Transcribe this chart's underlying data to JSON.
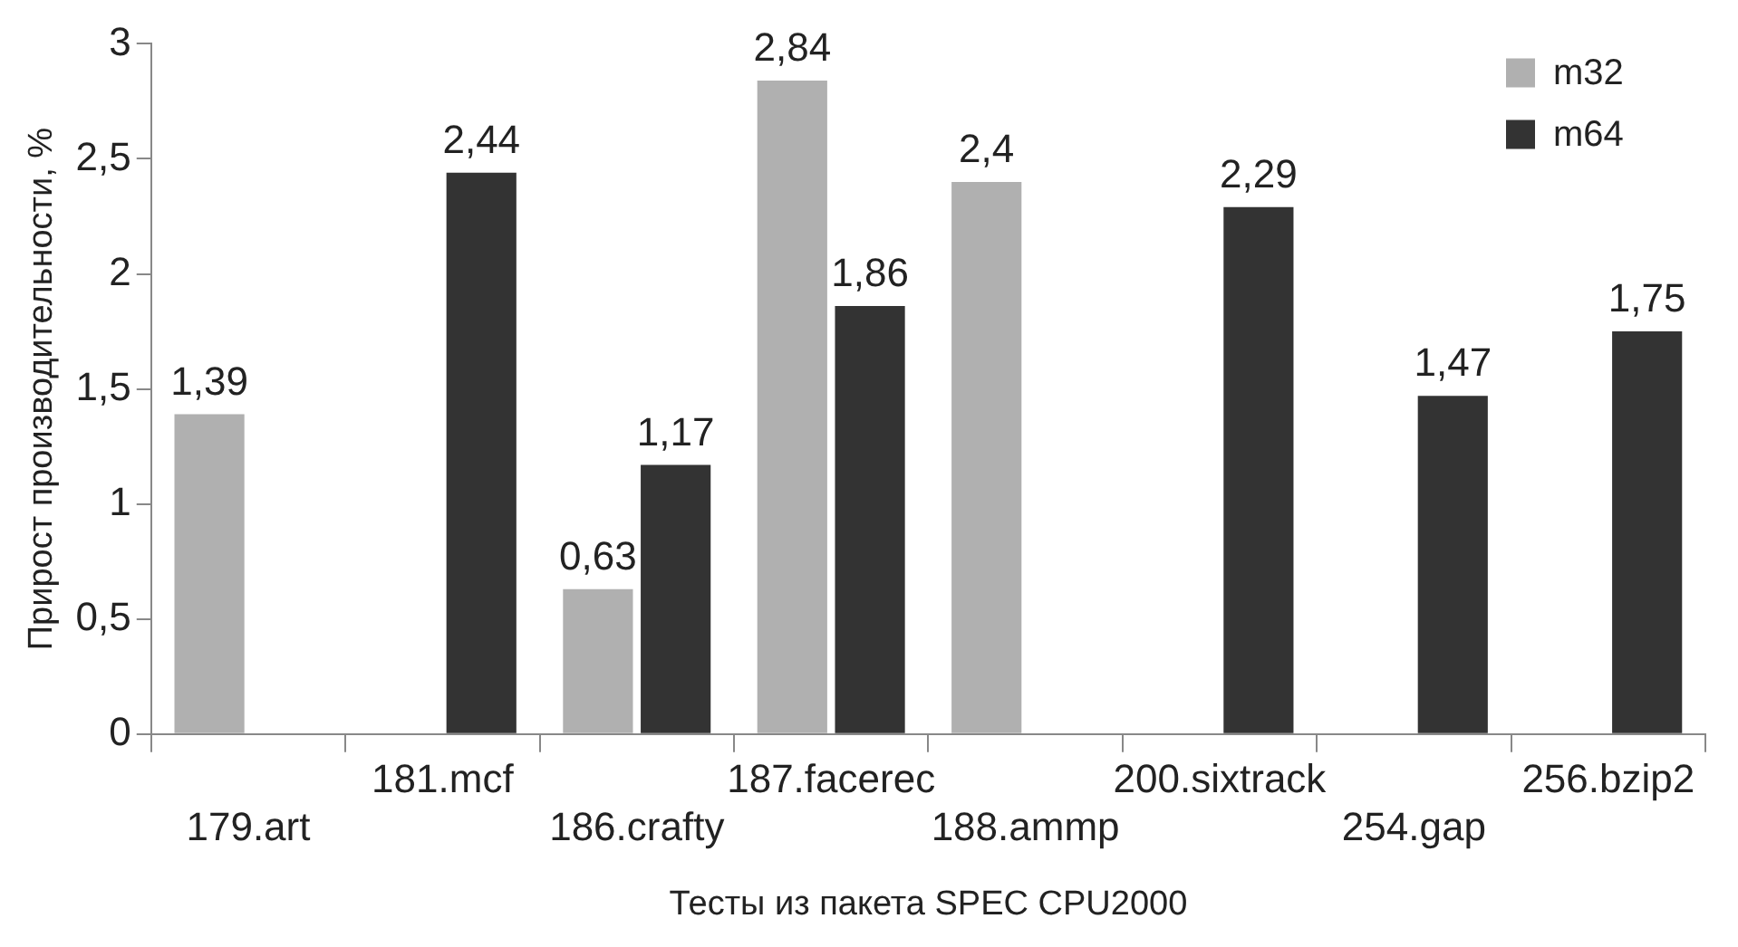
{
  "chart_data": {
    "type": "bar",
    "xlabel": "Тесты из пакета SPEC CPU2000",
    "ylabel": "Прирост производительности, %",
    "categories": [
      "179.art",
      "181.mcf",
      "186.crafty",
      "187.facerec",
      "188.ammp",
      "200.sixtrack",
      "254.gap",
      "256.bzip2"
    ],
    "series": [
      {
        "name": "m32",
        "color": "#b0b0b0",
        "values": [
          1.39,
          null,
          0.63,
          2.84,
          2.4,
          null,
          null,
          null
        ],
        "value_labels": [
          "1,39",
          null,
          "0,63",
          "2,84",
          "2,4",
          null,
          null,
          null
        ]
      },
      {
        "name": "m64",
        "color": "#333333",
        "values": [
          null,
          2.44,
          1.17,
          1.86,
          null,
          2.29,
          1.47,
          1.75
        ],
        "value_labels": [
          null,
          "2,44",
          "1,17",
          "1,86",
          null,
          "2,29",
          "1,47",
          "1,75"
        ]
      }
    ],
    "ylim": [
      0,
      3
    ],
    "yticks": [
      0,
      {
        "value": 0.5,
        "label": "0,5"
      },
      1,
      {
        "value": 1.5,
        "label": "1,5"
      },
      2,
      {
        "value": 2.5,
        "label": "2,5"
      },
      3
    ],
    "grid": false,
    "legend": "top right"
  }
}
